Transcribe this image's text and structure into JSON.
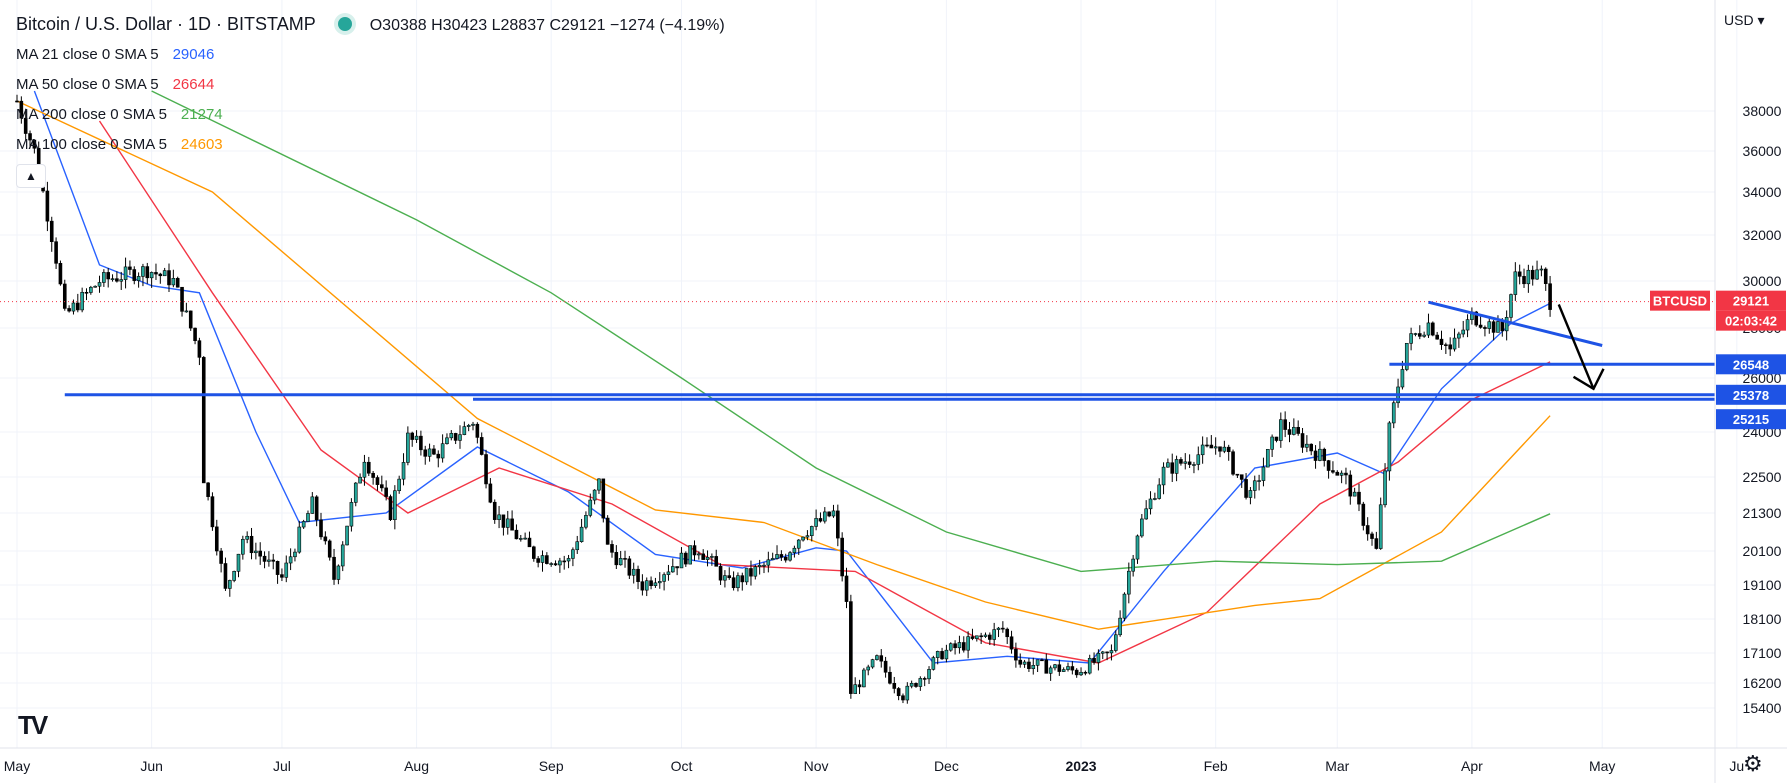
{
  "header": {
    "title": "Bitcoin / U.S. Dollar · 1D · BITSTAMP",
    "ohlc": "O30388  H30423  L28837  C29121  −1274 (−4.19%)"
  },
  "indicators": [
    {
      "label": "MA 21 close 0 SMA 5",
      "value": "29046",
      "color": "#2962ff"
    },
    {
      "label": "MA 50 close 0 SMA 5",
      "value": "26644",
      "color": "#f23645"
    },
    {
      "label": "MA 200 close 0 SMA 5",
      "value": "21274",
      "color": "#4caf50"
    },
    {
      "label": "MA 100 close 0 SMA 5",
      "value": "24603",
      "color": "#ff9800"
    }
  ],
  "currency": "USD",
  "logo": "TV",
  "icons": {
    "collapse": "chevron-up-icon",
    "settings": "gear-icon",
    "logo": "tradingview-logo-icon"
  },
  "colors": {
    "up": "#26a69a",
    "down": "#f23645",
    "candle": "#000000",
    "level_line": "#1e53e5",
    "price_line": "#f23645",
    "grid": "#f0f3fa",
    "axis_text": "#131722"
  },
  "chart_data": {
    "type": "candlestick",
    "symbol": "BTCUSD",
    "timeframe": "1D",
    "y_ticks": [
      15400,
      16200,
      17100,
      18100,
      19100,
      20100,
      21300,
      22500,
      24000,
      26000,
      28000,
      30000,
      32000,
      34000,
      36000,
      38000
    ],
    "x_ticks": [
      "May",
      "Jun",
      "Jul",
      "Aug",
      "Sep",
      "Oct",
      "Nov",
      "Dec",
      "2023",
      "Feb",
      "Mar",
      "Apr",
      "May",
      "Ju"
    ],
    "ylim": [
      15000,
      38500
    ],
    "price_path": [
      [
        "2022-05-01",
        38500
      ],
      [
        "2022-05-05",
        36000
      ],
      [
        "2022-05-10",
        31000
      ],
      [
        "2022-05-12",
        28500
      ],
      [
        "2022-05-20",
        30000
      ],
      [
        "2022-05-31",
        30500
      ],
      [
        "2022-06-06",
        30000
      ],
      [
        "2022-06-12",
        27000
      ],
      [
        "2022-06-13",
        22500
      ],
      [
        "2022-06-18",
        18900
      ],
      [
        "2022-06-22",
        20500
      ],
      [
        "2022-07-01",
        19300
      ],
      [
        "2022-07-08",
        21600
      ],
      [
        "2022-07-13",
        19300
      ],
      [
        "2022-07-20",
        23200
      ],
      [
        "2022-07-26",
        21300
      ],
      [
        "2022-07-30",
        23800
      ],
      [
        "2022-08-05",
        23200
      ],
      [
        "2022-08-14",
        24400
      ],
      [
        "2022-08-19",
        21300
      ],
      [
        "2022-08-28",
        20000
      ],
      [
        "2022-09-05",
        19800
      ],
      [
        "2022-09-12",
        22300
      ],
      [
        "2022-09-14",
        20200
      ],
      [
        "2022-09-22",
        19100
      ],
      [
        "2022-10-05",
        20200
      ],
      [
        "2022-10-12",
        19100
      ],
      [
        "2022-10-25",
        20000
      ],
      [
        "2022-10-29",
        20700
      ],
      [
        "2022-11-05",
        21300
      ],
      [
        "2022-11-08",
        18500
      ],
      [
        "2022-11-09",
        15900
      ],
      [
        "2022-11-15",
        16900
      ],
      [
        "2022-11-21",
        15800
      ],
      [
        "2022-11-30",
        17100
      ],
      [
        "2022-12-14",
        17800
      ],
      [
        "2022-12-18",
        16800
      ],
      [
        "2022-12-31",
        16550
      ],
      [
        "2023-01-08",
        17100
      ],
      [
        "2023-01-14",
        20700
      ],
      [
        "2023-01-20",
        22700
      ],
      [
        "2023-02-02",
        23600
      ],
      [
        "2023-02-09",
        21800
      ],
      [
        "2023-02-16",
        24300
      ],
      [
        "2023-02-25",
        23200
      ],
      [
        "2023-03-03",
        22400
      ],
      [
        "2023-03-10",
        20100
      ],
      [
        "2023-03-13",
        24100
      ],
      [
        "2023-03-17",
        27400
      ],
      [
        "2023-03-22",
        28200
      ],
      [
        "2023-03-27",
        27100
      ],
      [
        "2023-04-01",
        28500
      ],
      [
        "2023-04-08",
        27900
      ],
      [
        "2023-04-11",
        30200
      ],
      [
        "2023-04-17",
        30300
      ],
      [
        "2023-04-19",
        29121
      ]
    ],
    "series": [
      {
        "name": "MA 21",
        "color": "#2962ff",
        "values": [
          [
            "2022-05-05",
            39000
          ],
          [
            "2022-05-20",
            30700
          ],
          [
            "2022-06-01",
            29800
          ],
          [
            "2022-06-12",
            29500
          ],
          [
            "2022-06-25",
            24000
          ],
          [
            "2022-07-05",
            21000
          ],
          [
            "2022-07-25",
            21300
          ],
          [
            "2022-08-15",
            23500
          ],
          [
            "2022-09-05",
            22000
          ],
          [
            "2022-09-25",
            20000
          ],
          [
            "2022-10-15",
            19600
          ],
          [
            "2022-11-01",
            20200
          ],
          [
            "2022-11-08",
            20100
          ],
          [
            "2022-11-28",
            16800
          ],
          [
            "2022-12-15",
            17000
          ],
          [
            "2023-01-03",
            16800
          ],
          [
            "2023-01-20",
            19500
          ],
          [
            "2023-02-10",
            22800
          ],
          [
            "2023-03-01",
            23300
          ],
          [
            "2023-03-12",
            22600
          ],
          [
            "2023-03-25",
            25600
          ],
          [
            "2023-04-10",
            28200
          ],
          [
            "2023-04-19",
            29046
          ]
        ]
      },
      {
        "name": "MA 50",
        "color": "#f23645",
        "values": [
          [
            "2022-05-20",
            37500
          ],
          [
            "2022-06-15",
            29500
          ],
          [
            "2022-07-10",
            23400
          ],
          [
            "2022-07-30",
            21300
          ],
          [
            "2022-08-20",
            22800
          ],
          [
            "2022-09-15",
            21600
          ],
          [
            "2022-10-10",
            19700
          ],
          [
            "2022-11-10",
            19500
          ],
          [
            "2022-12-10",
            17400
          ],
          [
            "2023-01-05",
            16800
          ],
          [
            "2023-01-30",
            18300
          ],
          [
            "2023-02-25",
            21600
          ],
          [
            "2023-03-15",
            23000
          ],
          [
            "2023-04-01",
            25200
          ],
          [
            "2023-04-19",
            26644
          ]
        ]
      },
      {
        "name": "MA 100",
        "color": "#ff9800",
        "values": [
          [
            "2022-05-01",
            38500
          ],
          [
            "2022-06-15",
            34000
          ],
          [
            "2022-08-15",
            24500
          ],
          [
            "2022-09-25",
            21400
          ],
          [
            "2022-10-20",
            21000
          ],
          [
            "2022-11-15",
            19700
          ],
          [
            "2022-12-10",
            18600
          ],
          [
            "2023-01-05",
            17800
          ],
          [
            "2023-02-10",
            18500
          ],
          [
            "2023-02-25",
            18700
          ],
          [
            "2023-03-25",
            20700
          ],
          [
            "2023-04-19",
            24603
          ]
        ]
      },
      {
        "name": "MA 200",
        "color": "#4caf50",
        "values": [
          [
            "2022-06-01",
            39000
          ],
          [
            "2022-08-01",
            32700
          ],
          [
            "2022-09-01",
            29500
          ],
          [
            "2022-10-01",
            26000
          ],
          [
            "2022-11-01",
            22800
          ],
          [
            "2022-12-01",
            20700
          ],
          [
            "2023-01-01",
            19500
          ],
          [
            "2023-02-01",
            19800
          ],
          [
            "2023-03-01",
            19700
          ],
          [
            "2023-03-25",
            19800
          ],
          [
            "2023-04-19",
            21274
          ]
        ]
      }
    ],
    "horizontal_levels": [
      {
        "label": "26548",
        "value": 26548,
        "from": "2023-03-13"
      },
      {
        "label": "25378",
        "value": 25378,
        "from": "2022-05-12"
      },
      {
        "label": "25215",
        "value": 25215,
        "from": "2022-08-14"
      }
    ],
    "trendline": {
      "from": [
        "2023-03-22",
        29100
      ],
      "to": [
        "2023-05-01",
        27300
      ]
    },
    "arrow": {
      "from": [
        "2023-04-21",
        29000
      ],
      "to": [
        "2023-04-29",
        25600
      ]
    },
    "last_price": {
      "label": "BTCUSD",
      "price": "29121",
      "countdown": "02:03:42",
      "value": 29121
    }
  }
}
